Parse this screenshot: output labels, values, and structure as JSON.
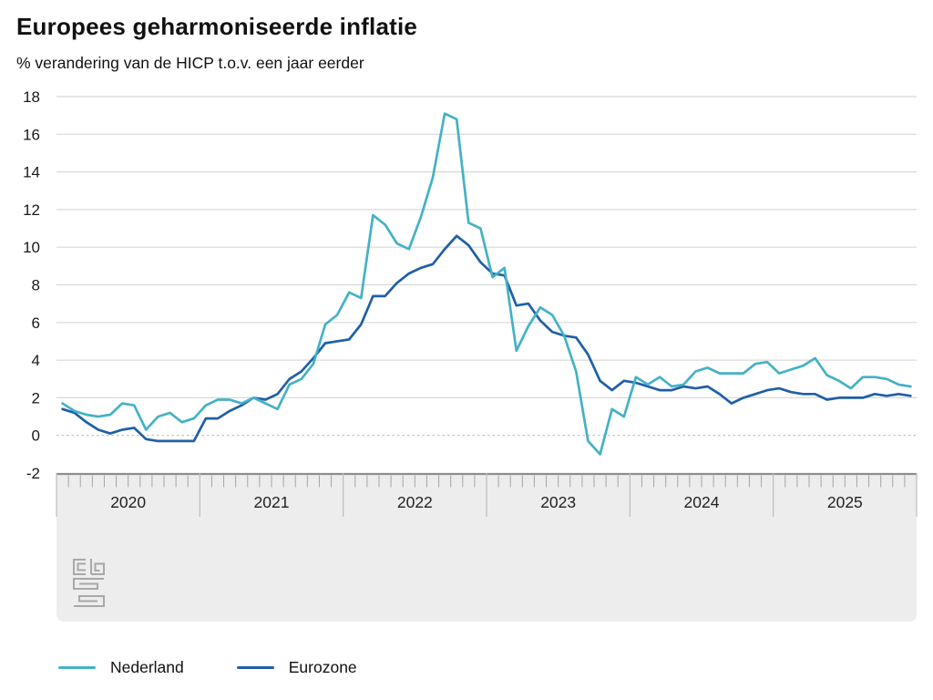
{
  "page": {
    "background": "#FFFFFF"
  },
  "chart_data": {
    "type": "line",
    "title": "Europees geharmoniseerde inflatie",
    "subtitle": "% verandering van de HICP t.o.v. een jaar eerder",
    "x_axis": {
      "unit": "month",
      "start": "2020-01",
      "end": "2025-12",
      "months_per_year": 12,
      "years": [
        "2020",
        "2021",
        "2022",
        "2023",
        "2024",
        "2025"
      ]
    },
    "y_axis": {
      "min": -2,
      "max": 18,
      "tick_step": 2,
      "ticks": [
        -2,
        0,
        2,
        4,
        6,
        8,
        10,
        12,
        14,
        16,
        18
      ]
    },
    "grid": {
      "shown": true,
      "zero_line_dashed": true
    },
    "legend_position": "bottom-left",
    "series": [
      {
        "name": "Nederland",
        "color": "#44B1C7",
        "values": [
          1.7,
          1.3,
          1.1,
          1.0,
          1.1,
          1.7,
          1.6,
          0.3,
          1.0,
          1.2,
          0.7,
          0.9,
          1.6,
          1.9,
          1.9,
          1.7,
          2.0,
          1.7,
          1.4,
          2.7,
          3.0,
          3.8,
          5.9,
          6.4,
          7.6,
          7.3,
          11.7,
          11.2,
          10.2,
          9.9,
          11.6,
          13.7,
          17.1,
          16.8,
          11.3,
          11.0,
          8.4,
          8.9,
          4.5,
          5.8,
          6.8,
          6.4,
          5.3,
          3.4,
          -0.3,
          -1.0,
          1.4,
          1.0,
          3.1,
          2.7,
          3.1,
          2.6,
          2.7,
          3.4,
          3.6,
          3.3,
          3.3,
          3.3,
          3.8,
          3.9,
          3.3,
          3.5,
          3.7,
          4.1,
          3.2,
          2.9,
          2.5,
          3.1,
          3.1,
          3.0,
          2.7,
          2.6
        ]
      },
      {
        "name": "Eurozone",
        "color": "#1F5FA8",
        "values": [
          1.4,
          1.2,
          0.7,
          0.3,
          0.1,
          0.3,
          0.4,
          -0.2,
          -0.3,
          -0.3,
          -0.3,
          -0.3,
          0.9,
          0.9,
          1.3,
          1.6,
          2.0,
          1.9,
          2.2,
          3.0,
          3.4,
          4.1,
          4.9,
          5.0,
          5.1,
          5.9,
          7.4,
          7.4,
          8.1,
          8.6,
          8.9,
          9.1,
          9.9,
          10.6,
          10.1,
          9.2,
          8.6,
          8.5,
          6.9,
          7.0,
          6.1,
          5.5,
          5.3,
          5.2,
          4.3,
          2.9,
          2.4,
          2.9,
          2.8,
          2.6,
          2.4,
          2.4,
          2.6,
          2.5,
          2.6,
          2.2,
          1.7,
          2.0,
          2.2,
          2.4,
          2.5,
          2.3,
          2.2,
          2.2,
          1.9,
          2.0,
          2.0,
          2.0,
          2.2,
          2.1,
          2.2,
          2.1
        ]
      }
    ]
  },
  "axis_band": {
    "background": "#EDEDED",
    "top_line_color": "#8E8E8E",
    "tick_color": "#A5A5A5",
    "separator_color": "#BDBDBD",
    "label_color": "#222222"
  },
  "grid_colors": {
    "line": "#D8D8D8",
    "zero_line": "#BDBDBD"
  },
  "branding": {
    "logo": "cbs-logo",
    "logo_color": "#A8A8A8"
  }
}
